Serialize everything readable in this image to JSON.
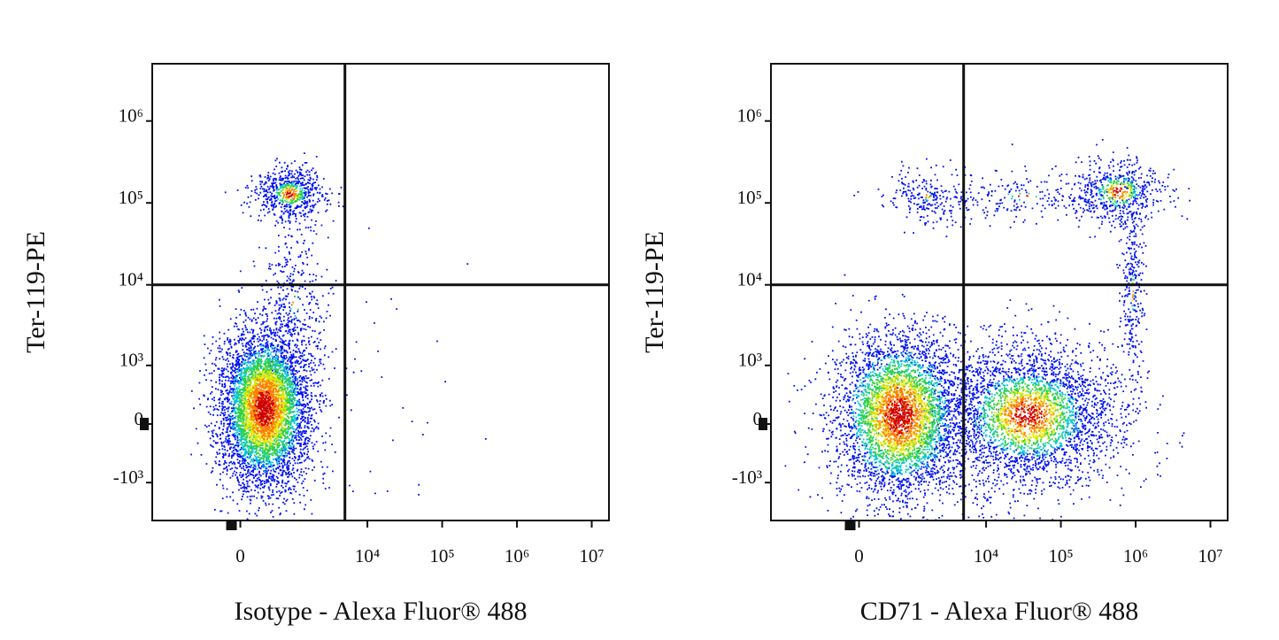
{
  "chart_data": [
    {
      "type": "scatter",
      "x_label": "Isotype - Alexa Fluor® 488",
      "y_label": "Ter-119-PE",
      "scale": "biexponential",
      "xlim": [
        -3000,
        17000000
      ],
      "xticks": [
        0,
        {
          "value": 10000,
          "label": "10⁴"
        },
        {
          "value": 100000,
          "label": "10⁵"
        },
        {
          "value": 1000000,
          "label": "10⁶"
        },
        {
          "value": 10000000,
          "label": "10⁷"
        }
      ],
      "ylim": [
        -3000,
        5000000
      ],
      "yticks": [
        {
          "value": -1000,
          "label": "-10³"
        },
        0,
        {
          "value": 1000,
          "label": "10³"
        },
        {
          "value": 10000,
          "label": "10⁴"
        },
        {
          "value": 100000,
          "label": "10⁵"
        },
        {
          "value": 1000000,
          "label": "10⁶"
        }
      ],
      "gate_x": 5000,
      "gate_y": 10000
    },
    {
      "type": "scatter",
      "x_label": "CD71 - Alexa Fluor® 488",
      "y_label": "Ter-119-PE",
      "scale": "biexponential",
      "xlim": [
        -3000,
        17000000
      ],
      "xticks": [
        0,
        {
          "value": 10000,
          "label": "10⁴"
        },
        {
          "value": 100000,
          "label": "10⁵"
        },
        {
          "value": 1000000,
          "label": "10⁶"
        },
        {
          "value": 10000000,
          "label": "10⁷"
        }
      ],
      "ylim": [
        -3000,
        5000000
      ],
      "yticks": [
        {
          "value": -1000,
          "label": "-10³"
        },
        0,
        {
          "value": 1000,
          "label": "10³"
        },
        {
          "value": 10000,
          "label": "10⁴"
        },
        {
          "value": 100000,
          "label": "10⁵"
        },
        {
          "value": 1000000,
          "label": "10⁶"
        }
      ],
      "gate_x": 5000,
      "gate_y": 10000
    }
  ]
}
